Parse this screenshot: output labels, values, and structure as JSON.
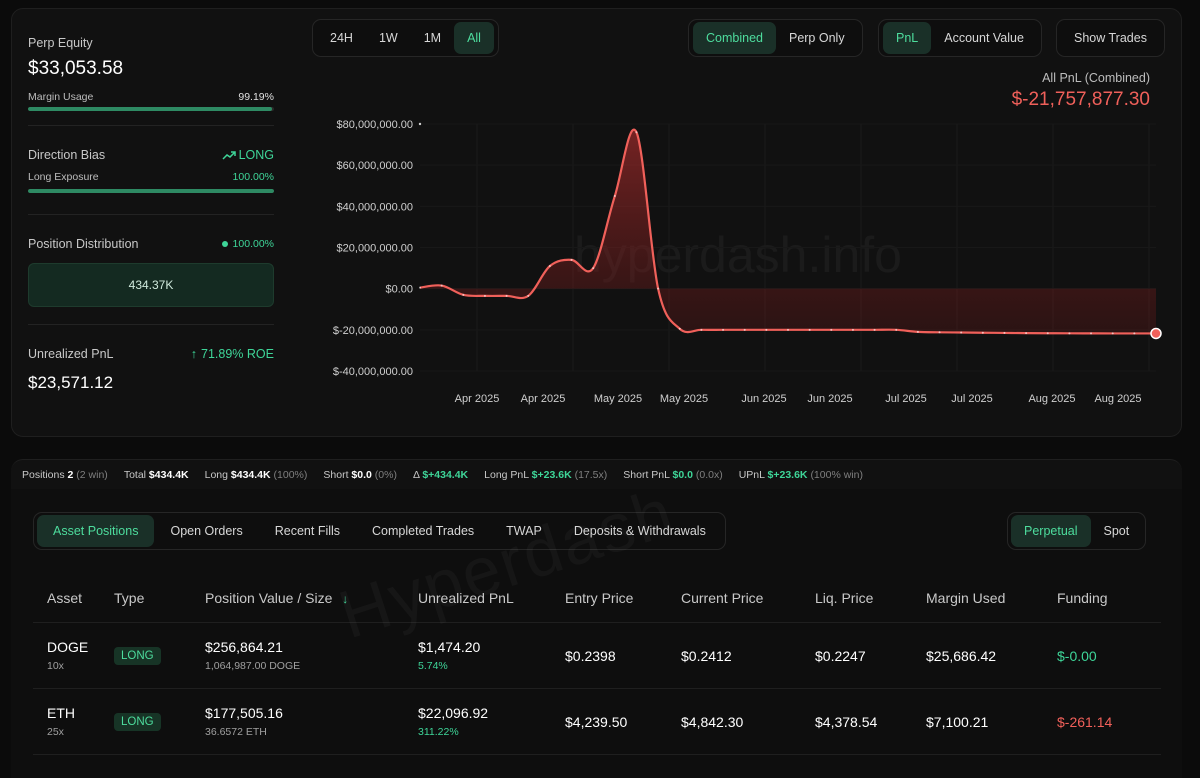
{
  "stats": {
    "perp_equity_label": "Perp Equity",
    "perp_equity_value": "$33,053.58",
    "margin_usage_label": "Margin Usage",
    "margin_usage_value": "99.19%",
    "margin_usage_fraction": 0.9919,
    "direction_bias_label": "Direction Bias",
    "direction_bias_value": "LONG",
    "long_exposure_label": "Long Exposure",
    "long_exposure_value": "100.00%",
    "long_exposure_fraction": 1.0,
    "position_distribution_label": "Position Distribution",
    "position_distribution_value": "100.00%",
    "distribution_box_value": "434.37K",
    "unrealized_pnl_label": "Unrealized PnL",
    "roe_value": "71.89% ROE",
    "unrealized_pnl_value": "$23,571.12"
  },
  "controls": {
    "time_ranges": [
      "24H",
      "1W",
      "1M",
      "All"
    ],
    "time_active": "All",
    "mode_options": [
      "Combined",
      "Perp Only"
    ],
    "mode_active": "Combined",
    "metric_options": [
      "PnL",
      "Account Value"
    ],
    "metric_active": "PnL",
    "show_trades_label": "Show Trades"
  },
  "pnl_summary": {
    "label": "All PnL (Combined)",
    "value": "$-21,757,877.30"
  },
  "chart_data": {
    "type": "area",
    "title": "",
    "xlabel": "",
    "ylabel": "",
    "watermark": "hyperdash.info",
    "ylim": [
      -40000000,
      80000000
    ],
    "y_ticks": [
      "$80,000,000.00",
      "$60,000,000.00",
      "$40,000,000.00",
      "$20,000,000.00",
      "$0.00",
      "$-20,000,000.00",
      "$-40,000,000.00"
    ],
    "y_tick_values": [
      80000000,
      60000000,
      40000000,
      20000000,
      0,
      -20000000,
      -40000000
    ],
    "x_ticks": [
      "Apr 2025",
      "Apr 2025",
      "May 2025",
      "May 2025",
      "Jun 2025",
      "Jun 2025",
      "Jul 2025",
      "Jul 2025",
      "Aug 2025",
      "Aug 2025"
    ],
    "grid": true,
    "series": [
      {
        "color": "#f0605a",
        "x": [
          0,
          1,
          2,
          3,
          4,
          5,
          6,
          7,
          8,
          9,
          10,
          11,
          12,
          13,
          14,
          15,
          16,
          17,
          18,
          19,
          20,
          21,
          22,
          23,
          24,
          25,
          26,
          27,
          28,
          29,
          30,
          31,
          32,
          33,
          34
        ],
        "values": [
          500000,
          1500000,
          -3000000,
          -3500000,
          -3500000,
          -3500000,
          11000000,
          14000000,
          10000000,
          45000000,
          76000000,
          0,
          -19500000,
          -20000000,
          -20000000,
          -20000000,
          -20000000,
          -20000000,
          -20000000,
          -20000000,
          -20000000,
          -20000000,
          -20000000,
          -21000000,
          -21200000,
          -21300000,
          -21400000,
          -21500000,
          -21600000,
          -21650000,
          -21700000,
          -21720000,
          -21740000,
          -21750000,
          -21757877
        ]
      }
    ]
  },
  "summary_strip": {
    "positions_label": "Positions",
    "positions_value": "2",
    "positions_win": "(2 win)",
    "total_label": "Total",
    "total_value": "$434.4K",
    "long_label": "Long",
    "long_value": "$434.4K",
    "long_pct": "(100%)",
    "short_label": "Short",
    "short_value": "$0.0",
    "short_pct": "(0%)",
    "delta_label": "Δ",
    "delta_value": "$+434.4K",
    "long_pnl_label": "Long PnL",
    "long_pnl_value": "$+23.6K",
    "long_pnl_mult": "(17.5x)",
    "short_pnl_label": "Short PnL",
    "short_pnl_value": "$0.0",
    "short_pnl_mult": "(0.0x)",
    "upnl_label": "UPnL",
    "upnl_value": "$+23.6K",
    "upnl_win": "(100% win)"
  },
  "tabs": [
    "Asset Positions",
    "Open Orders",
    "Recent Fills",
    "Completed Trades",
    "TWAP",
    "Deposits & Withdrawals"
  ],
  "tab_active": "Asset Positions",
  "type_toggle": [
    "Perpetual",
    "Spot"
  ],
  "type_active": "Perpetual",
  "table": {
    "headers": [
      "Asset",
      "Type",
      "Position Value / Size",
      "Unrealized PnL",
      "Entry Price",
      "Current Price",
      "Liq. Price",
      "Margin Used",
      "Funding"
    ],
    "sort_icon": "arrow-down-icon",
    "rows": [
      {
        "asset": "DOGE",
        "leverage": "10x",
        "type": "LONG",
        "value": "$256,864.21",
        "size": "1,064,987.00 DOGE",
        "pnl": "$1,474.20",
        "pnl_pct": "5.74%",
        "entry": "$0.2398",
        "current": "$0.2412",
        "liq": "$0.2247",
        "margin": "$25,686.42",
        "funding": "$-0.00",
        "funding_color": "#3ed598"
      },
      {
        "asset": "ETH",
        "leverage": "25x",
        "type": "LONG",
        "value": "$177,505.16",
        "size": "36.6572 ETH",
        "pnl": "$22,096.92",
        "pnl_pct": "311.22%",
        "entry": "$4,239.50",
        "current": "$4,842.30",
        "liq": "$4,378.54",
        "margin": "$7,100.21",
        "funding": "$-261.14",
        "funding_color": "#f0605a"
      }
    ]
  },
  "watermark_bottom": "Hyperdash"
}
